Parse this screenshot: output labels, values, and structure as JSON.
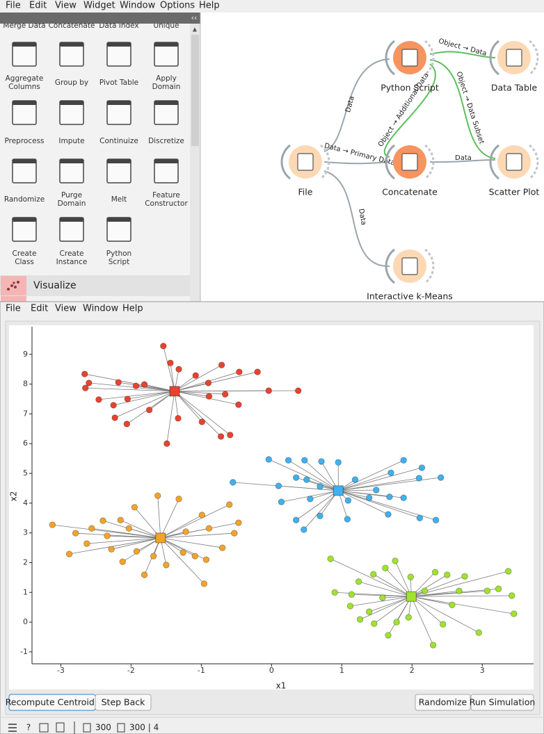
{
  "menubar": [
    "File",
    "Edit",
    "View",
    "Widget",
    "Window",
    "Options",
    "Help"
  ],
  "widget_panel": {
    "partial_row": [
      "Merge Data",
      "Concatenate",
      "Data Index",
      "Unique"
    ],
    "widgets": [
      [
        "Aggregate",
        "Columns"
      ],
      [
        "Group by"
      ],
      [
        "Pivot Table"
      ],
      [
        "Apply",
        "Domain"
      ],
      [
        "Preprocess"
      ],
      [
        "Impute"
      ],
      [
        "Continuize"
      ],
      [
        "Discretize"
      ],
      [
        "Randomize"
      ],
      [
        "Purge",
        "Domain"
      ],
      [
        "Melt"
      ],
      [
        "Feature",
        "Constructor"
      ],
      [
        "Create",
        "Class"
      ],
      [
        "Create",
        "Instance"
      ],
      [
        "Python",
        "Script"
      ]
    ],
    "category": "Visualize"
  },
  "workflow": {
    "nodes": [
      "File",
      "Python Script",
      "Concatenate",
      "Data Table",
      "Scatter Plot",
      "Interactive k-Means"
    ],
    "links": [
      "Data",
      "Data → Primary Data",
      "Object → Additional Data",
      "Object → Data",
      "Object → Data Subset",
      "Data",
      "Data"
    ]
  },
  "kmeans_window": {
    "menu": [
      "File",
      "Edit",
      "View",
      "Window",
      "Help"
    ],
    "plot": {
      "xlabel": "x1",
      "ylabel": "x2",
      "xlim": [
        -3.41,
        3.73
      ],
      "ylim": [
        -1.4,
        9.93
      ],
      "xticks": [
        -3,
        -2,
        -1,
        0,
        1,
        2,
        3
      ],
      "yticks": [
        -1,
        0,
        1,
        2,
        3,
        4,
        5,
        6,
        7,
        8,
        9
      ],
      "clusters": [
        {
          "color": "#e8432e",
          "centroid": {
            "x": -1.38,
            "y": 7.76
          },
          "x": [
            -1.54,
            -2.66,
            -2.6,
            -2.65,
            -2.46,
            -2.25,
            -2.23,
            -2.06,
            -1.49,
            -2.05,
            -1.81,
            -1.44,
            -1.32,
            -1.08,
            -0.9,
            -0.71,
            -0.46,
            -0.2,
            -0.04,
            0.38,
            -0.47,
            -0.66,
            -0.72,
            -0.59,
            -0.99,
            -1.33,
            -1.74,
            -2.18,
            -1.93,
            -0.89
          ],
          "y": [
            9.28,
            8.34,
            8.04,
            7.87,
            7.48,
            7.29,
            6.87,
            6.66,
            6.0,
            7.5,
            7.99,
            8.71,
            8.5,
            8.29,
            8.04,
            8.64,
            8.41,
            8.41,
            7.78,
            7.78,
            7.31,
            7.66,
            6.24,
            6.29,
            6.73,
            6.85,
            7.13,
            8.06,
            7.94,
            7.59
          ]
        },
        {
          "color": "#3fb1ee",
          "centroid": {
            "x": 0.95,
            "y": 4.42
          },
          "x": [
            -0.04,
            0.24,
            0.47,
            0.71,
            0.95,
            -0.55,
            0.1,
            0.35,
            0.69,
            1.19,
            1.49,
            1.68,
            1.88,
            2.14,
            2.41,
            2.1,
            2.34,
            2.11,
            1.66,
            1.08,
            0.69,
            0.35,
            0.46,
            0.14,
            0.55,
            1.09,
            1.39,
            1.88,
            1.7,
            0.5
          ],
          "y": [
            5.47,
            5.44,
            5.44,
            5.4,
            5.37,
            4.7,
            4.58,
            4.86,
            4.56,
            4.79,
            4.44,
            4.21,
            5.44,
            5.19,
            4.86,
            4.84,
            3.43,
            3.5,
            3.62,
            3.46,
            3.57,
            3.43,
            3.11,
            4.04,
            4.14,
            4.09,
            4.18,
            4.18,
            5.02,
            4.79
          ]
        },
        {
          "color": "#f2a42a",
          "centroid": {
            "x": -1.58,
            "y": 2.83
          },
          "x": [
            -3.12,
            -2.88,
            -2.79,
            -2.56,
            -2.4,
            -2.15,
            -1.95,
            -1.62,
            -1.32,
            -0.99,
            -0.6,
            -0.47,
            -0.53,
            -0.7,
            -0.96,
            -0.93,
            -1.09,
            -1.26,
            -1.5,
            -1.81,
            -2.12,
            -2.28,
            -2.63,
            -2.34,
            -1.92,
            -0.89,
            -1.22,
            -2.03,
            -1.68
          ],
          "y": [
            3.27,
            2.29,
            2.99,
            3.15,
            3.41,
            3.43,
            3.86,
            4.25,
            4.14,
            3.6,
            3.95,
            3.34,
            2.99,
            2.5,
            1.29,
            2.1,
            2.22,
            2.34,
            1.92,
            1.59,
            2.03,
            2.45,
            2.64,
            2.9,
            2.38,
            3.15,
            3.04,
            3.15,
            2.22
          ]
        },
        {
          "color": "#a0e22e",
          "centroid": {
            "x": 1.99,
            "y": 0.86
          },
          "x": [
            0.84,
            0.9,
            1.14,
            1.24,
            1.45,
            1.62,
            1.76,
            1.98,
            2.33,
            2.5,
            2.75,
            3.37,
            3.23,
            3.42,
            3.45,
            2.95,
            2.44,
            2.3,
            1.95,
            1.66,
            1.46,
            1.26,
            1.12,
            1.39,
            1.58,
            2.18,
            2.57,
            2.67,
            1.78,
            3.07
          ],
          "y": [
            2.13,
            1.0,
            0.93,
            1.36,
            1.61,
            1.82,
            2.06,
            1.52,
            1.68,
            1.59,
            1.54,
            1.71,
            1.12,
            0.89,
            0.28,
            -0.35,
            -0.07,
            -0.77,
            0.16,
            -0.44,
            -0.05,
            0.09,
            0.54,
            0.35,
            0.82,
            1.05,
            0.58,
            1.05,
            0.0,
            1.05
          ]
        }
      ]
    },
    "buttons": [
      "Recompute Centroids",
      "Step Back",
      "Randomize",
      "Run Simulation"
    ],
    "status": [
      "300",
      "300 | 4"
    ]
  }
}
